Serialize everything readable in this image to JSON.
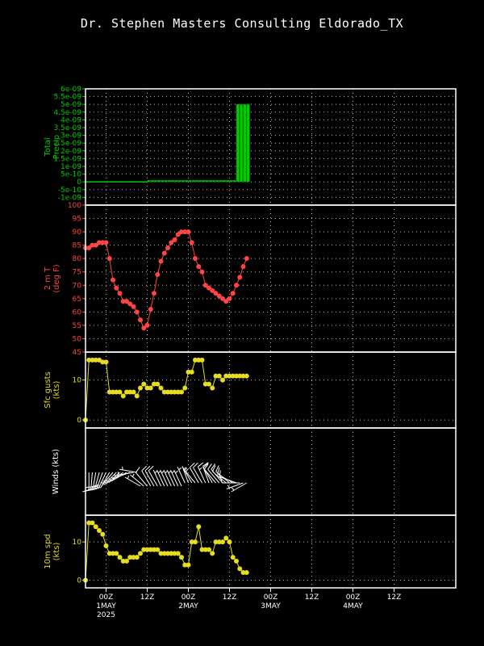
{
  "title": "Dr. Stephen Masters Consulting  Eldorado_TX",
  "colors": {
    "background": "#000000",
    "axis": "#ffffff",
    "grid": "#bbbbbb",
    "precip": "#00cc00",
    "temp": "#ff4444",
    "gust": "#e6dc20",
    "wind": "#ffffff"
  },
  "x_axis": {
    "range_hours": [
      -6,
      102
    ],
    "ticks": [
      {
        "hour": 0,
        "lines": [
          "00Z",
          "1MAY",
          "2025"
        ]
      },
      {
        "hour": 12,
        "lines": [
          "12Z"
        ]
      },
      {
        "hour": 24,
        "lines": [
          "00Z",
          "2MAY"
        ]
      },
      {
        "hour": 36,
        "lines": [
          "12Z"
        ]
      },
      {
        "hour": 48,
        "lines": [
          "00Z",
          "3MAY"
        ]
      },
      {
        "hour": 60,
        "lines": [
          "12Z"
        ]
      },
      {
        "hour": 72,
        "lines": [
          "00Z",
          "4MAY"
        ]
      },
      {
        "hour": 84,
        "lines": [
          "12Z"
        ]
      }
    ]
  },
  "chart_data": [
    {
      "type": "bar",
      "ylabel_lines": [
        "Total",
        "Precip"
      ],
      "ylim": [
        -1.5e-09,
        6e-09
      ],
      "yticks": [
        "-1e-09",
        "-5e-10",
        "0",
        "5e-10",
        "1e-09",
        "1.5e-09",
        "2e-09",
        "2.5e-09",
        "3e-09",
        "3.5e-09",
        "4e-09",
        "4.5e-09",
        "5e-09",
        "5.5e-09",
        "6e-09"
      ],
      "ytick_values": [
        -1e-09,
        -5e-10,
        0,
        5e-10,
        1e-09,
        1.5e-09,
        2e-09,
        2.5e-09,
        3e-09,
        3.5e-09,
        4e-09,
        4.5e-09,
        5e-09,
        5.5e-09,
        6e-09
      ],
      "series": [
        {
          "x": [
            -6,
            -5,
            -4,
            -3,
            -2,
            -1,
            0,
            1,
            2,
            3,
            4,
            5,
            6,
            7,
            8,
            9,
            10,
            11,
            12,
            13,
            14,
            15,
            16,
            17,
            18,
            19,
            20,
            21,
            22,
            23,
            24,
            25,
            26,
            27,
            28,
            29,
            30,
            31,
            32,
            33,
            34,
            35,
            36,
            37,
            38,
            39,
            40,
            41
          ],
          "values": [
            0,
            0,
            0,
            0,
            0,
            0,
            0,
            0,
            0,
            0,
            0,
            0,
            0,
            0,
            0,
            0,
            0,
            0,
            1e-10,
            1e-10,
            1e-10,
            1e-10,
            1e-10,
            1e-10,
            1e-10,
            1e-10,
            1e-10,
            1e-10,
            1e-10,
            1e-10,
            1e-10,
            1e-10,
            1e-10,
            1e-10,
            1e-10,
            1e-10,
            1e-10,
            1e-10,
            1e-10,
            1e-10,
            1e-10,
            1e-10,
            1e-10,
            1e-10,
            5e-09,
            5e-09,
            5e-09,
            5e-09
          ]
        }
      ]
    },
    {
      "type": "line",
      "ylabel_lines": [
        "2 m T",
        "(deg F)"
      ],
      "ylim": [
        45,
        100
      ],
      "yticks": [
        "45",
        "50",
        "55",
        "60",
        "65",
        "70",
        "75",
        "80",
        "85",
        "90",
        "95",
        "100"
      ],
      "ytick_values": [
        45,
        50,
        55,
        60,
        65,
        70,
        75,
        80,
        85,
        90,
        95,
        100
      ],
      "series": [
        {
          "x": [
            -6,
            -5,
            -4,
            -3,
            -2,
            -1,
            0,
            1,
            2,
            3,
            4,
            5,
            6,
            7,
            8,
            9,
            10,
            11,
            12,
            13,
            14,
            15,
            16,
            17,
            18,
            19,
            20,
            21,
            22,
            23,
            24,
            25,
            26,
            27,
            28,
            29,
            30,
            31,
            32,
            33,
            34,
            35,
            36,
            37,
            38,
            39,
            40,
            41
          ],
          "values": [
            84,
            84,
            85,
            85,
            86,
            86,
            86,
            80,
            72,
            69,
            67,
            64,
            64,
            63,
            62,
            60,
            57,
            54,
            55,
            61,
            67,
            74,
            79,
            82,
            84,
            86,
            87,
            89,
            90,
            90,
            90,
            86,
            80,
            77,
            75,
            70,
            69,
            68,
            67,
            66,
            65,
            64,
            65,
            67,
            70,
            73,
            77,
            80
          ]
        }
      ]
    },
    {
      "type": "line",
      "ylabel_lines": [
        "Sfc gusts",
        "(kts)"
      ],
      "ylim": [
        -2,
        17
      ],
      "yticks": [
        "0",
        "10"
      ],
      "ytick_values": [
        0,
        10
      ],
      "series": [
        {
          "x": [
            -6,
            -5,
            -4,
            -3,
            -2,
            -1,
            0,
            1,
            2,
            3,
            4,
            5,
            6,
            7,
            8,
            9,
            10,
            11,
            12,
            13,
            14,
            15,
            16,
            17,
            18,
            19,
            20,
            21,
            22,
            23,
            24,
            25,
            26,
            27,
            28,
            29,
            30,
            31,
            32,
            33,
            34,
            35,
            36,
            37,
            38,
            39,
            40,
            41
          ],
          "values": [
            0,
            15,
            15,
            15,
            15,
            14.5,
            14.5,
            7,
            7,
            7,
            7,
            6,
            7,
            7,
            7,
            6,
            8,
            9,
            8,
            8,
            9,
            9,
            8,
            7,
            7,
            7,
            7,
            7,
            7,
            8,
            12,
            12,
            15,
            15,
            15,
            9,
            9,
            8,
            11,
            11,
            10,
            11,
            11,
            11,
            11,
            11,
            11,
            11
          ]
        }
      ]
    },
    {
      "type": "barbs",
      "ylabel_lines": [
        "Winds (kts)"
      ],
      "series": [
        {
          "x": [
            -6,
            -5,
            -4,
            -3,
            -2,
            -1,
            0,
            1,
            2,
            3,
            4,
            5,
            6,
            7,
            8,
            9,
            10,
            11,
            12,
            13,
            14,
            15,
            16,
            17,
            18,
            19,
            20,
            21,
            22,
            23,
            24,
            25,
            26,
            27,
            28,
            29,
            30,
            31,
            32,
            33,
            34,
            35,
            36,
            37,
            38,
            39,
            40,
            41
          ],
          "speed": [
            0,
            15,
            15,
            15,
            15,
            15,
            14,
            8,
            7,
            7,
            6,
            5,
            5,
            6,
            6,
            7,
            6,
            7,
            8,
            8,
            8,
            8,
            7,
            7,
            7,
            7,
            7,
            7,
            7,
            7,
            5,
            4,
            5,
            10,
            10,
            15,
            10,
            8,
            10,
            9,
            10,
            10,
            11,
            11,
            10,
            8,
            4,
            3
          ],
          "dir": [
            200,
            180,
            185,
            190,
            195,
            200,
            205,
            210,
            220,
            225,
            230,
            235,
            240,
            250,
            260,
            280,
            300,
            310,
            320,
            330,
            330,
            330,
            335,
            335,
            335,
            335,
            335,
            335,
            335,
            335,
            340,
            330,
            320,
            330,
            330,
            335,
            340,
            330,
            320,
            320,
            320,
            310,
            310,
            300,
            290,
            270,
            250,
            240
          ]
        }
      ]
    },
    {
      "type": "line",
      "ylabel_lines": [
        "10m spd",
        "(kts)"
      ],
      "ylim": [
        -2,
        17
      ],
      "yticks": [
        "0",
        "10"
      ],
      "ytick_values": [
        0,
        10
      ],
      "series": [
        {
          "x": [
            -6,
            -5,
            -4,
            -3,
            -2,
            -1,
            0,
            1,
            2,
            3,
            4,
            5,
            6,
            7,
            8,
            9,
            10,
            11,
            12,
            13,
            14,
            15,
            16,
            17,
            18,
            19,
            20,
            21,
            22,
            23,
            24,
            25,
            26,
            27,
            28,
            29,
            30,
            31,
            32,
            33,
            34,
            35,
            36,
            37,
            38,
            39,
            40,
            41
          ],
          "values": [
            0,
            15,
            15,
            14,
            13,
            12,
            9,
            7,
            7,
            7,
            6,
            5,
            5,
            6,
            6,
            6,
            7,
            8,
            8,
            8,
            8,
            8,
            7,
            7,
            7,
            7,
            7,
            7,
            6,
            4,
            4,
            10,
            10,
            14,
            8,
            8,
            8,
            7,
            10,
            10,
            10,
            11,
            10,
            6,
            5,
            3,
            2,
            2
          ]
        }
      ]
    }
  ]
}
